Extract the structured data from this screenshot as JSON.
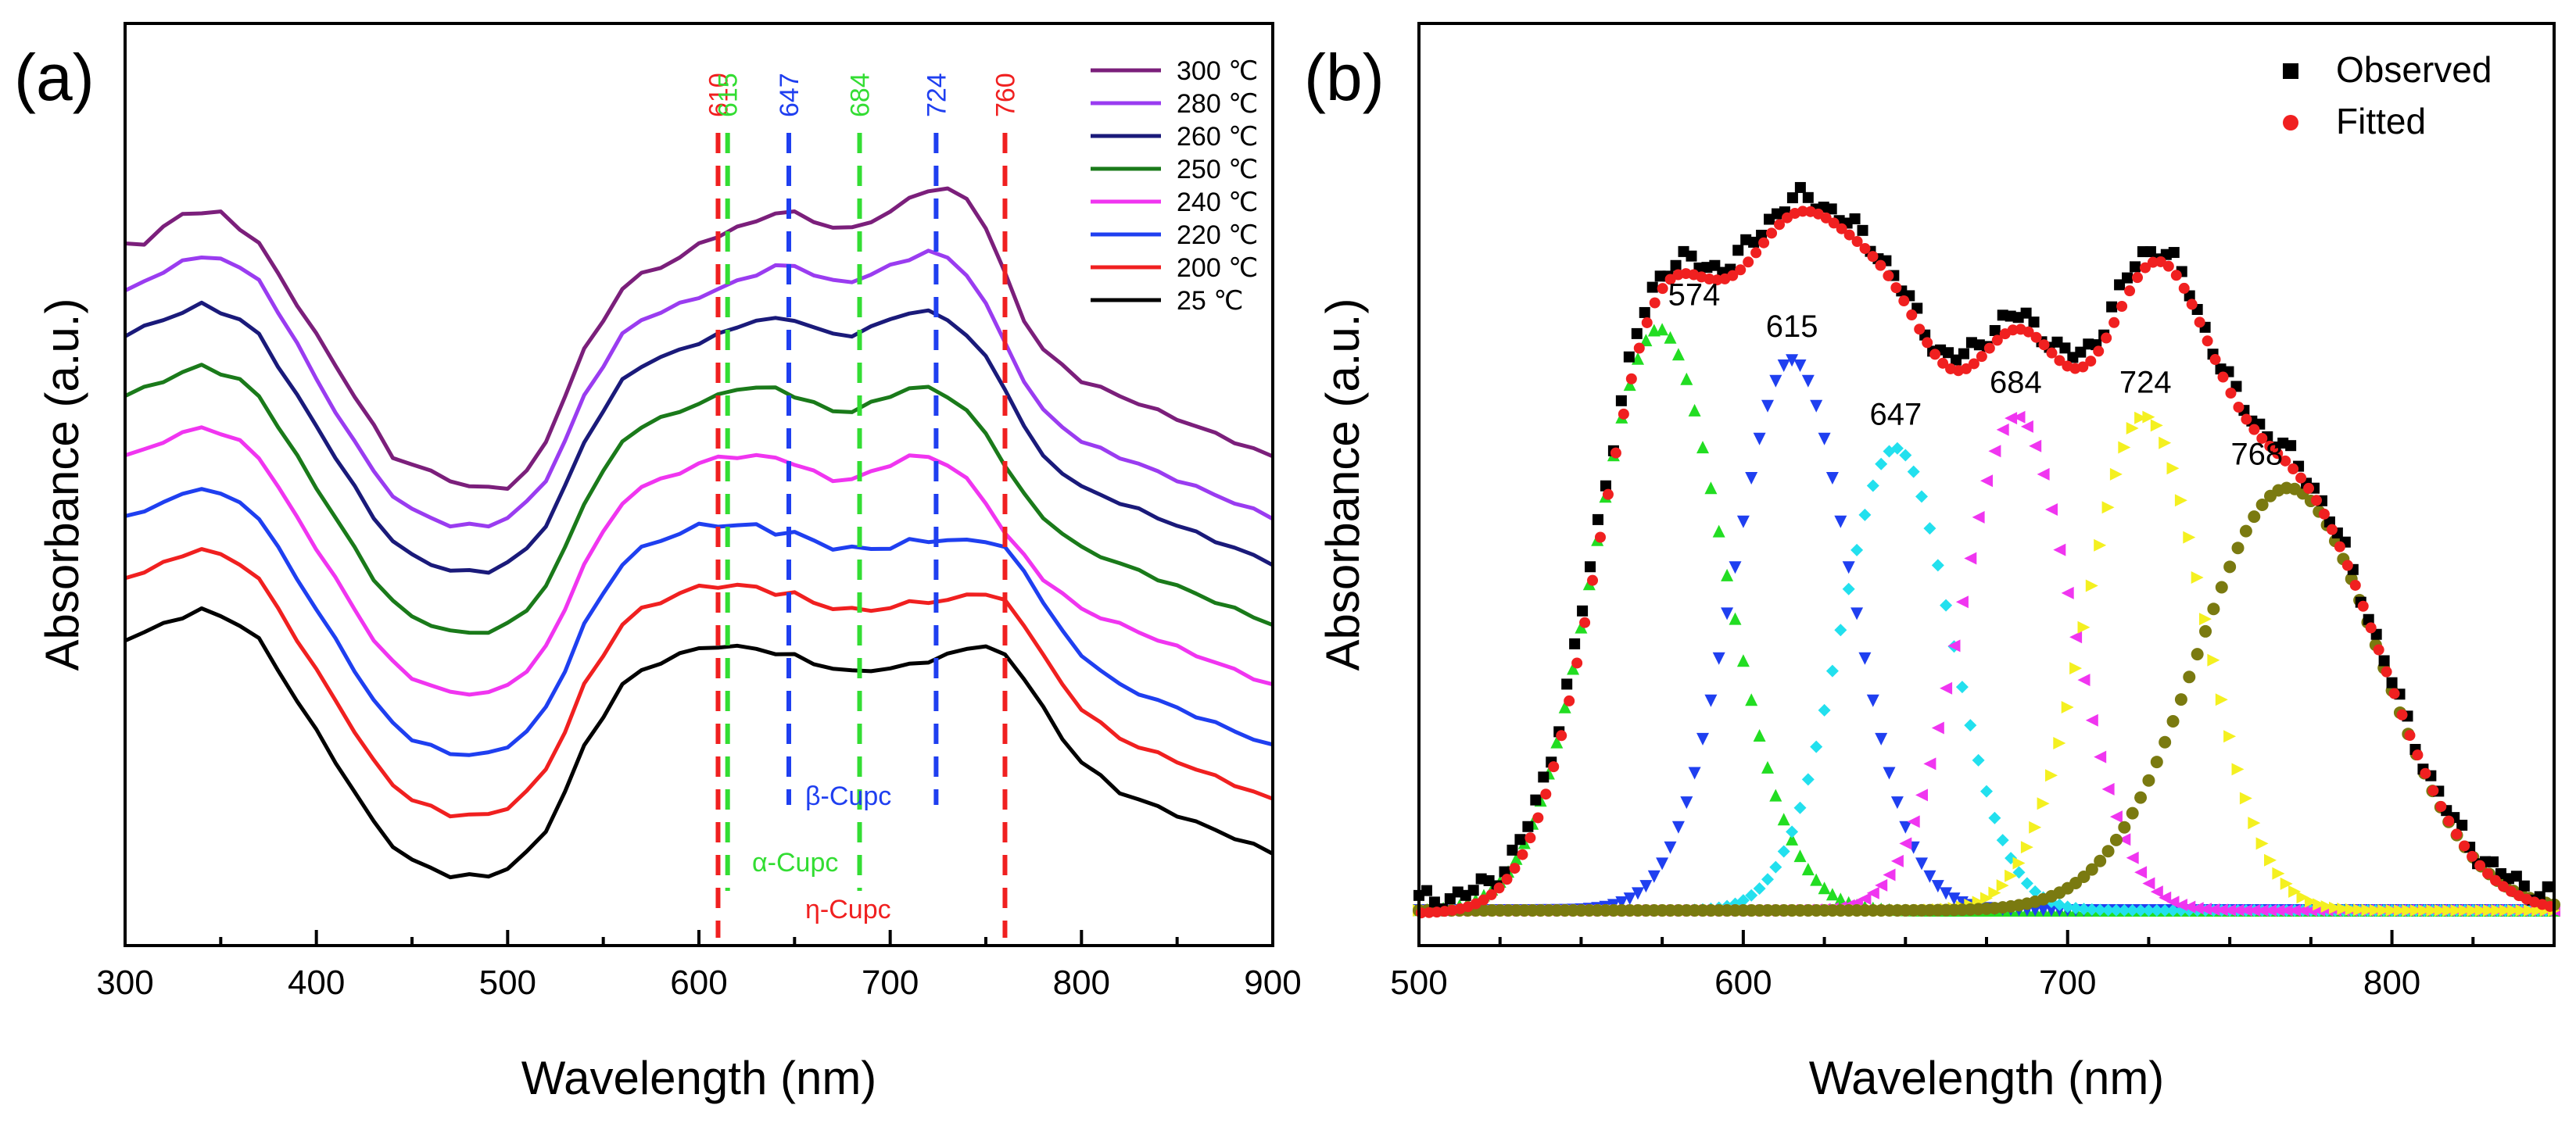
{
  "chart_data": [
    {
      "panel": "(a)",
      "type": "line",
      "xlabel": "Wavelength (nm)",
      "ylabel": "Absorbance (a.u.)",
      "xlim": [
        300,
        900
      ],
      "xticks": [
        300,
        400,
        500,
        600,
        700,
        800,
        900
      ],
      "y_ticks_shown": false,
      "x": [
        300,
        310,
        320,
        330,
        340,
        350,
        360,
        370,
        380,
        390,
        400,
        410,
        420,
        430,
        440,
        450,
        460,
        470,
        480,
        490,
        500,
        510,
        520,
        530,
        540,
        550,
        560,
        570,
        580,
        590,
        600,
        610,
        620,
        630,
        640,
        650,
        660,
        670,
        680,
        690,
        700,
        710,
        720,
        730,
        740,
        750,
        760,
        770,
        780,
        790,
        800,
        810,
        820,
        830,
        840,
        850,
        860,
        870,
        880,
        890,
        900
      ],
      "series": [
        {
          "name": "300 ℃",
          "color": "#7b1f7b",
          "values": [
            0.43,
            0.43,
            0.44,
            0.45,
            0.45,
            0.45,
            0.44,
            0.43,
            0.41,
            0.39,
            0.37,
            0.35,
            0.33,
            0.31,
            0.29,
            0.285,
            0.28,
            0.275,
            0.27,
            0.27,
            0.27,
            0.28,
            0.3,
            0.33,
            0.36,
            0.38,
            0.4,
            0.41,
            0.415,
            0.42,
            0.43,
            0.435,
            0.44,
            0.445,
            0.45,
            0.45,
            0.445,
            0.44,
            0.44,
            0.445,
            0.45,
            0.46,
            0.465,
            0.465,
            0.46,
            0.44,
            0.41,
            0.38,
            0.36,
            0.35,
            0.34,
            0.335,
            0.33,
            0.325,
            0.32,
            0.315,
            0.31,
            0.305,
            0.3,
            0.295,
            0.29
          ]
        },
        {
          "name": "280 ℃",
          "color": "#9a3cf0",
          "values": [
            0.4,
            0.405,
            0.41,
            0.42,
            0.42,
            0.42,
            0.415,
            0.405,
            0.385,
            0.365,
            0.34,
            0.32,
            0.3,
            0.28,
            0.265,
            0.255,
            0.25,
            0.245,
            0.245,
            0.245,
            0.25,
            0.26,
            0.275,
            0.3,
            0.33,
            0.35,
            0.37,
            0.38,
            0.385,
            0.39,
            0.395,
            0.4,
            0.405,
            0.41,
            0.415,
            0.415,
            0.41,
            0.405,
            0.405,
            0.41,
            0.415,
            0.42,
            0.425,
            0.42,
            0.41,
            0.39,
            0.365,
            0.34,
            0.32,
            0.31,
            0.3,
            0.295,
            0.29,
            0.285,
            0.28,
            0.275,
            0.27,
            0.265,
            0.26,
            0.255,
            0.25
          ]
        },
        {
          "name": "260 ℃",
          "color": "#1a1a7a",
          "values": [
            0.37,
            0.375,
            0.38,
            0.385,
            0.39,
            0.385,
            0.38,
            0.37,
            0.35,
            0.33,
            0.31,
            0.29,
            0.27,
            0.25,
            0.235,
            0.225,
            0.22,
            0.215,
            0.215,
            0.215,
            0.22,
            0.23,
            0.245,
            0.27,
            0.3,
            0.32,
            0.34,
            0.35,
            0.355,
            0.36,
            0.365,
            0.37,
            0.375,
            0.38,
            0.38,
            0.38,
            0.375,
            0.37,
            0.37,
            0.375,
            0.38,
            0.385,
            0.385,
            0.38,
            0.37,
            0.355,
            0.335,
            0.31,
            0.29,
            0.28,
            0.27,
            0.265,
            0.26,
            0.255,
            0.25,
            0.245,
            0.24,
            0.235,
            0.23,
            0.225,
            0.22
          ]
        },
        {
          "name": "250 ℃",
          "color": "#1a7a1a",
          "values": [
            0.33,
            0.335,
            0.34,
            0.345,
            0.35,
            0.345,
            0.34,
            0.33,
            0.31,
            0.29,
            0.27,
            0.25,
            0.23,
            0.21,
            0.195,
            0.185,
            0.18,
            0.175,
            0.175,
            0.175,
            0.18,
            0.19,
            0.205,
            0.23,
            0.26,
            0.28,
            0.3,
            0.31,
            0.315,
            0.32,
            0.325,
            0.33,
            0.335,
            0.335,
            0.335,
            0.33,
            0.325,
            0.32,
            0.32,
            0.325,
            0.33,
            0.335,
            0.335,
            0.33,
            0.32,
            0.305,
            0.285,
            0.265,
            0.25,
            0.24,
            0.23,
            0.225,
            0.22,
            0.215,
            0.21,
            0.205,
            0.2,
            0.195,
            0.19,
            0.185,
            0.18
          ]
        },
        {
          "name": "240 ℃",
          "color": "#f035f0",
          "values": [
            0.29,
            0.295,
            0.3,
            0.305,
            0.31,
            0.305,
            0.3,
            0.29,
            0.27,
            0.25,
            0.23,
            0.21,
            0.19,
            0.17,
            0.155,
            0.145,
            0.14,
            0.135,
            0.135,
            0.135,
            0.14,
            0.15,
            0.165,
            0.19,
            0.22,
            0.24,
            0.26,
            0.27,
            0.275,
            0.28,
            0.285,
            0.29,
            0.29,
            0.29,
            0.29,
            0.285,
            0.28,
            0.275,
            0.275,
            0.28,
            0.285,
            0.29,
            0.29,
            0.285,
            0.275,
            0.26,
            0.24,
            0.225,
            0.21,
            0.2,
            0.19,
            0.185,
            0.18,
            0.175,
            0.17,
            0.165,
            0.16,
            0.155,
            0.15,
            0.145,
            0.14
          ]
        },
        {
          "name": "220 ℃",
          "color": "#1f3ff0",
          "values": [
            0.25,
            0.255,
            0.26,
            0.265,
            0.27,
            0.265,
            0.26,
            0.25,
            0.23,
            0.21,
            0.19,
            0.17,
            0.15,
            0.13,
            0.115,
            0.105,
            0.1,
            0.095,
            0.095,
            0.095,
            0.1,
            0.11,
            0.125,
            0.15,
            0.18,
            0.2,
            0.22,
            0.23,
            0.235,
            0.24,
            0.245,
            0.245,
            0.245,
            0.245,
            0.24,
            0.24,
            0.235,
            0.23,
            0.23,
            0.23,
            0.23,
            0.235,
            0.235,
            0.235,
            0.235,
            0.235,
            0.23,
            0.215,
            0.195,
            0.175,
            0.16,
            0.15,
            0.14,
            0.135,
            0.13,
            0.125,
            0.12,
            0.115,
            0.11,
            0.105,
            0.1
          ]
        },
        {
          "name": "200 ℃",
          "color": "#f02020",
          "values": [
            0.21,
            0.215,
            0.22,
            0.225,
            0.23,
            0.225,
            0.22,
            0.21,
            0.19,
            0.17,
            0.15,
            0.13,
            0.11,
            0.09,
            0.075,
            0.065,
            0.06,
            0.055,
            0.055,
            0.055,
            0.06,
            0.07,
            0.085,
            0.11,
            0.14,
            0.16,
            0.18,
            0.19,
            0.195,
            0.2,
            0.205,
            0.205,
            0.205,
            0.205,
            0.2,
            0.2,
            0.195,
            0.19,
            0.19,
            0.19,
            0.19,
            0.195,
            0.195,
            0.195,
            0.2,
            0.2,
            0.195,
            0.18,
            0.16,
            0.14,
            0.125,
            0.115,
            0.105,
            0.1,
            0.095,
            0.09,
            0.085,
            0.08,
            0.075,
            0.07,
            0.065
          ]
        },
        {
          "name": "25 ℃",
          "color": "#000000",
          "values": [
            0.17,
            0.175,
            0.18,
            0.185,
            0.19,
            0.185,
            0.18,
            0.17,
            0.15,
            0.13,
            0.11,
            0.09,
            0.07,
            0.05,
            0.035,
            0.025,
            0.02,
            0.015,
            0.015,
            0.015,
            0.02,
            0.03,
            0.045,
            0.07,
            0.1,
            0.12,
            0.14,
            0.15,
            0.155,
            0.16,
            0.165,
            0.165,
            0.165,
            0.165,
            0.16,
            0.16,
            0.155,
            0.15,
            0.15,
            0.15,
            0.15,
            0.155,
            0.155,
            0.16,
            0.165,
            0.165,
            0.16,
            0.145,
            0.125,
            0.105,
            0.09,
            0.08,
            0.07,
            0.065,
            0.06,
            0.055,
            0.05,
            0.045,
            0.04,
            0.035,
            0.03
          ]
        }
      ],
      "reference_lines": [
        {
          "x": 610,
          "label": "610",
          "color": "#f02020"
        },
        {
          "x": 615,
          "label": "615",
          "color": "#33dd33"
        },
        {
          "x": 647,
          "label": "647",
          "color": "#1f3ff0"
        },
        {
          "x": 684,
          "label": "684",
          "color": "#33dd33"
        },
        {
          "x": 724,
          "label": "724",
          "color": "#1f3ff0"
        },
        {
          "x": 760,
          "label": "760",
          "color": "#f02020"
        }
      ],
      "annotations": [
        {
          "text": "β-Cupc",
          "color": "#1f3ff0"
        },
        {
          "text": "α-Cupc",
          "color": "#33dd33"
        },
        {
          "text": "η-Cupc",
          "color": "#f02020"
        }
      ],
      "legend_position": "top-right"
    },
    {
      "panel": "(b)",
      "type": "scatter",
      "xlabel": "Wavelength (nm)",
      "ylabel": "Absorbance (a.u.)",
      "xlim": [
        500,
        850
      ],
      "xticks": [
        500,
        600,
        700,
        800
      ],
      "y_ticks_shown": false,
      "legend": [
        {
          "name": "Observed",
          "color": "#000000",
          "marker": "square"
        },
        {
          "name": "Fitted",
          "color": "#f02020",
          "marker": "circle"
        }
      ],
      "legend_position": "top-right",
      "gaussian_components": [
        {
          "center": 574,
          "width": 20,
          "amplitude": 0.73,
          "color": "#22dd22",
          "marker": "triangle-up",
          "label": "574"
        },
        {
          "center": 615,
          "width": 18,
          "amplitude": 0.69,
          "color": "#1f3ff0",
          "marker": "triangle-down",
          "label": "615"
        },
        {
          "center": 647,
          "width": 17,
          "amplitude": 0.58,
          "color": "#22e0ee",
          "marker": "diamond",
          "label": "647"
        },
        {
          "center": 684,
          "width": 17,
          "amplitude": 0.62,
          "color": "#f035f0",
          "marker": "triangle-left",
          "label": "684"
        },
        {
          "center": 724,
          "width": 18,
          "amplitude": 0.62,
          "color": "#f4f020",
          "marker": "triangle-right",
          "label": "724"
        },
        {
          "center": 768,
          "width": 28,
          "amplitude": 0.53,
          "color": "#7a7a10",
          "marker": "circle",
          "label": "768"
        }
      ]
    }
  ],
  "panel_labels": {
    "a": "(a)",
    "b": "(b)"
  }
}
